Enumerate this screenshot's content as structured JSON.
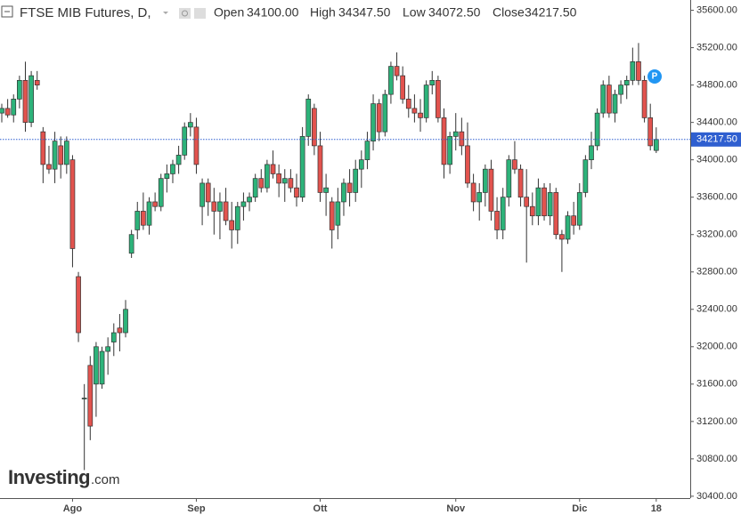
{
  "chart_data": {
    "type": "candlestick",
    "title": "FTSE MIB Futures, D,",
    "stats": [
      {
        "name": "Open",
        "value": 34100,
        "label": "34100.00"
      },
      {
        "name": "High",
        "value": 34347.5,
        "label": "34347.50"
      },
      {
        "name": "Low",
        "value": 34072.5,
        "label": "34072.50"
      },
      {
        "name": "Close",
        "value": 34217.5,
        "label": "34217.50"
      }
    ],
    "last_price": {
      "value": 34217.5,
      "label": "34217.50"
    },
    "marker_label": "P",
    "watermark": [
      "Investing",
      ".com"
    ],
    "up_color": "#2db37a",
    "down_color": "#e2534e",
    "price_line_color": "#2f5fd0",
    "ylim": [
      30380,
      35710
    ],
    "yticks": [
      {
        "value": 30400,
        "label": "30400.00"
      },
      {
        "value": 30800,
        "label": "30800.00"
      },
      {
        "value": 31200,
        "label": "31200.00"
      },
      {
        "value": 31600,
        "label": "31600.00"
      },
      {
        "value": 32000,
        "label": "32000.00"
      },
      {
        "value": 32400,
        "label": "32400.00"
      },
      {
        "value": 32800,
        "label": "32800.00"
      },
      {
        "value": 33200,
        "label": "33200.00"
      },
      {
        "value": 33600,
        "label": "33600.00"
      },
      {
        "value": 34000,
        "label": "34000.00"
      },
      {
        "value": 34400,
        "label": "34400.00"
      },
      {
        "value": 34800,
        "label": "34800.00"
      },
      {
        "value": 35200,
        "label": "35200.00"
      },
      {
        "value": 35600,
        "label": "35600.00"
      }
    ],
    "categories": [
      null,
      null,
      null,
      null,
      null,
      null,
      null,
      null,
      null,
      null,
      null,
      null,
      "Ago",
      null,
      null,
      null,
      null,
      null,
      null,
      null,
      null,
      null,
      null,
      null,
      null,
      null,
      null,
      null,
      null,
      null,
      null,
      null,
      null,
      "Sep",
      null,
      null,
      null,
      null,
      null,
      null,
      null,
      null,
      null,
      null,
      null,
      null,
      null,
      null,
      null,
      null,
      null,
      null,
      null,
      null,
      "Ott",
      null,
      null,
      null,
      null,
      null,
      null,
      null,
      null,
      null,
      null,
      null,
      null,
      null,
      null,
      null,
      null,
      null,
      null,
      null,
      null,
      null,
      null,
      "Nov",
      null,
      null,
      null,
      null,
      null,
      null,
      null,
      null,
      null,
      null,
      null,
      null,
      null,
      null,
      null,
      null,
      null,
      null,
      null,
      null,
      "Dic",
      null,
      null,
      null,
      null,
      null,
      null,
      null,
      null,
      null,
      null,
      null,
      null,
      "18"
    ],
    "open": [
      34500,
      34550,
      34480,
      34650,
      34850,
      34400,
      34850,
      34300,
      33950,
      33900,
      34150,
      33950,
      34000,
      32750,
      31450,
      31800,
      31600,
      31600,
      31950,
      32050,
      32200,
      32150,
      33000,
      33250,
      33450,
      33300,
      33550,
      33500,
      33800,
      33850,
      33950,
      34050,
      34350,
      34350,
      33500,
      33750,
      33550,
      33450,
      33550,
      33350,
      33250,
      33500,
      33550,
      33600,
      33800,
      33700,
      33950,
      33850,
      33750,
      33800,
      33700,
      33600,
      34250,
      34550,
      34150,
      33650,
      33550,
      33300,
      33550,
      33750,
      33650,
      33900,
      34000,
      34200,
      34600,
      34300,
      34700,
      35000,
      34900,
      34650,
      34550,
      34500,
      34450,
      34800,
      34850,
      34450,
      33950,
      34250,
      34300,
      34150,
      33750,
      33550,
      33650,
      33900,
      33450,
      33250,
      33600,
      34000,
      33900,
      33600,
      33500,
      33400,
      33700,
      33400,
      33650,
      33200,
      33150,
      33400,
      33300,
      33650,
      34000,
      34150,
      34500,
      34800,
      34500,
      34700,
      34800,
      34850,
      35050,
      34850,
      34450,
      34100
    ],
    "high": [
      34600,
      34650,
      34700,
      34900,
      35050,
      34950,
      34950,
      34350,
      34150,
      34300,
      34250,
      34250,
      34050,
      32800,
      31600,
      31900,
      32050,
      32000,
      32100,
      32250,
      32350,
      32500,
      33250,
      33550,
      33650,
      33600,
      33650,
      33850,
      33950,
      34000,
      34150,
      34400,
      34500,
      34450,
      33800,
      33800,
      33700,
      33650,
      33700,
      33550,
      33550,
      33650,
      33650,
      33850,
      33900,
      34000,
      34100,
      33950,
      33900,
      33900,
      33850,
      34350,
      34700,
      34600,
      34300,
      33850,
      33600,
      33700,
      33800,
      33900,
      34000,
      34100,
      34300,
      34700,
      34650,
      34750,
      35050,
      35150,
      35000,
      34800,
      34700,
      34650,
      34850,
      34950,
      34900,
      34550,
      34300,
      34500,
      34450,
      34400,
      33850,
      33750,
      33950,
      34000,
      33600,
      33700,
      34050,
      34200,
      33950,
      33900,
      33650,
      33800,
      33750,
      33750,
      33700,
      33250,
      33450,
      33550,
      33750,
      34050,
      34300,
      34550,
      34850,
      34900,
      34750,
      34850,
      34900,
      35200,
      35250,
      34900,
      34600,
      34347.5
    ],
    "low": [
      34400,
      34450,
      34400,
      34550,
      34300,
      34350,
      34750,
      33750,
      33850,
      33750,
      33800,
      33850,
      32850,
      32050,
      30680,
      31000,
      31250,
      31550,
      31700,
      31900,
      31950,
      32100,
      32950,
      33150,
      33250,
      33200,
      33450,
      33450,
      33650,
      33750,
      33850,
      34000,
      34250,
      33850,
      33300,
      33400,
      33200,
      33150,
      33300,
      33050,
      33100,
      33350,
      33450,
      33550,
      33650,
      33650,
      33800,
      33600,
      33550,
      33650,
      33500,
      33550,
      34150,
      34050,
      33550,
      33400,
      33050,
      33150,
      33400,
      33500,
      33550,
      33700,
      33900,
      34100,
      34200,
      34250,
      34600,
      34850,
      34600,
      34450,
      34400,
      34300,
      34400,
      34700,
      34400,
      33800,
      33850,
      34100,
      34050,
      33700,
      33450,
      33350,
      33500,
      33350,
      33150,
      33150,
      33500,
      33850,
      33500,
      32900,
      33300,
      33300,
      33350,
      33300,
      33150,
      32800,
      33100,
      33200,
      33250,
      33600,
      33900,
      34100,
      34450,
      34450,
      34400,
      34600,
      34650,
      34800,
      34800,
      34400,
      34100,
      34072.5
    ],
    "close": [
      34550,
      34480,
      34650,
      34850,
      34400,
      34900,
      34800,
      33950,
      33900,
      34200,
      33950,
      34200,
      33050,
      32150,
      31450,
      31150,
      32000,
      31950,
      32000,
      32150,
      32150,
      32400,
      33200,
      33450,
      33300,
      33550,
      33500,
      33800,
      33850,
      33950,
      34050,
      34350,
      34400,
      33950,
      33750,
      33550,
      33450,
      33550,
      33350,
      33250,
      33500,
      33550,
      33600,
      33800,
      33700,
      33950,
      33850,
      33750,
      33800,
      33700,
      33600,
      34250,
      34650,
      34150,
      33650,
      33700,
      33250,
      33550,
      33750,
      33650,
      33900,
      34000,
      34200,
      34600,
      34300,
      34700,
      35000,
      34900,
      34650,
      34550,
      34500,
      34450,
      34800,
      34850,
      34450,
      33950,
      34250,
      34300,
      34150,
      33750,
      33550,
      33650,
      33900,
      33450,
      33250,
      33600,
      34000,
      33900,
      33600,
      33500,
      33400,
      33700,
      33400,
      33650,
      33200,
      33150,
      33400,
      33300,
      33650,
      34000,
      34150,
      34500,
      34800,
      34500,
      34700,
      34800,
      34850,
      35050,
      34850,
      34450,
      34150,
      34217.5
    ]
  }
}
